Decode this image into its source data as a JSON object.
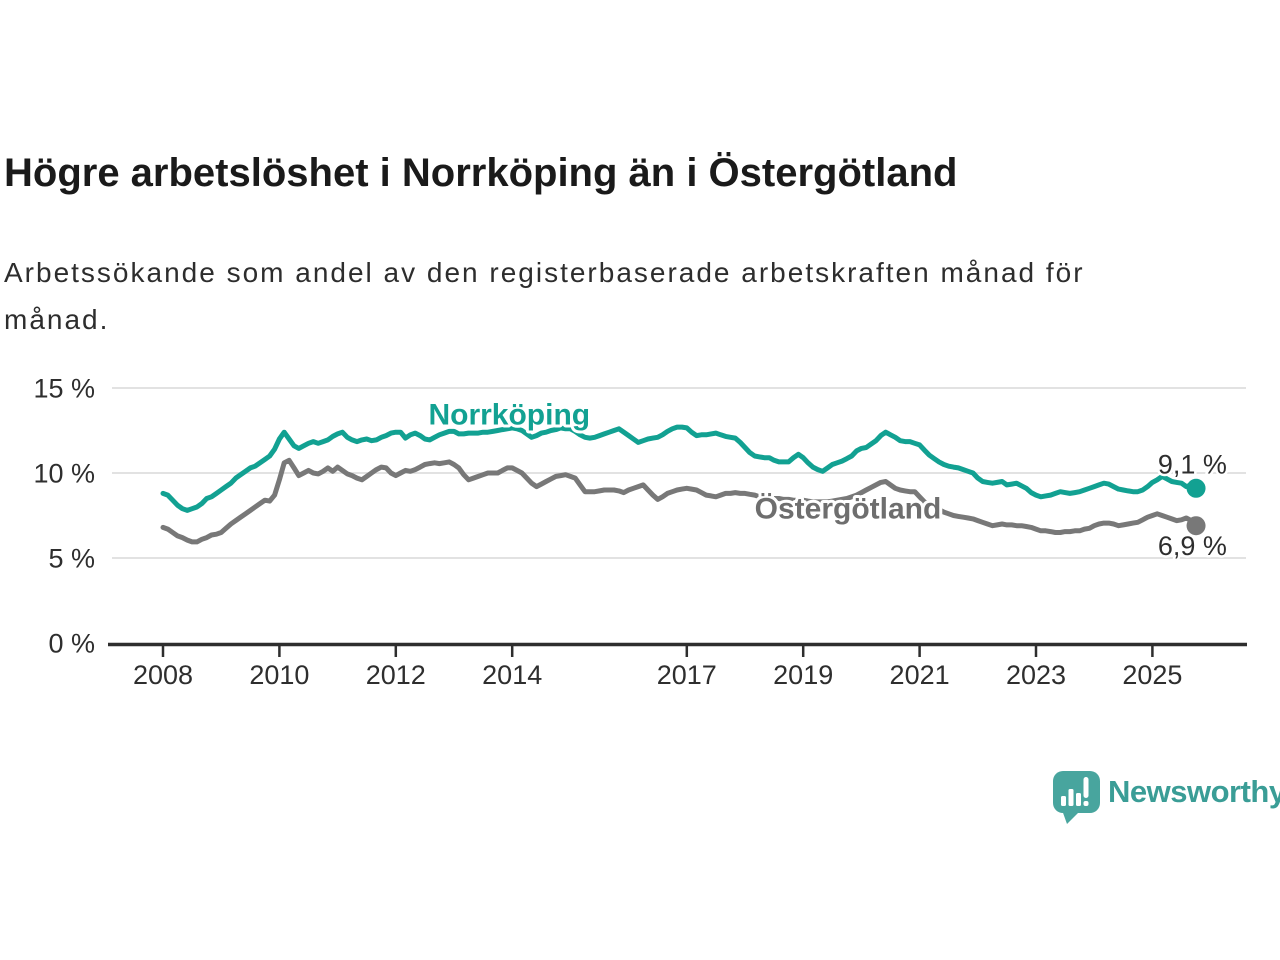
{
  "chart_data": {
    "type": "line",
    "title": "Högre arbetslöshet i Norrköping än i Östergötland",
    "subtitle": "Arbetssökande som andel av den registerbaserade arbetskraften månad för månad.",
    "grid": "horizontal",
    "grid_color": "#d9d9d9",
    "axis_color": "#2e2e2e",
    "axis_text_color": "#2e2e2e",
    "value_label_color": "#2e2e2e",
    "legend_position": "inline-labels",
    "x_axis": {
      "range": [
        2007.1,
        2026.6
      ],
      "ticks": [
        {
          "value": 2008,
          "label": "2008"
        },
        {
          "value": 2010,
          "label": "2010"
        },
        {
          "value": 2012,
          "label": "2012"
        },
        {
          "value": 2014,
          "label": "2014"
        },
        {
          "value": 2017,
          "label": "2017"
        },
        {
          "value": 2019,
          "label": "2019"
        },
        {
          "value": 2021,
          "label": "2021"
        },
        {
          "value": 2023,
          "label": "2023"
        },
        {
          "value": 2025,
          "label": "2025"
        }
      ]
    },
    "y_axis": {
      "range": [
        0,
        15.9
      ],
      "unit": "%",
      "ticks": [
        {
          "value": 15,
          "label": "15 %"
        },
        {
          "value": 10,
          "label": "10 %"
        },
        {
          "value": 5,
          "label": "5 %"
        },
        {
          "value": 0,
          "label": "0 %"
        }
      ]
    },
    "series": [
      {
        "name": "Norrköping",
        "color": "#12a192",
        "label_color": "#12a192",
        "label_anchor": {
          "x": 2013.95,
          "y": 13.45
        },
        "end_value": 9.1,
        "end_label": {
          "text": "9,1 %",
          "x": 2026.28,
          "y": 10.5
        },
        "start_year": 2008,
        "step_months": 1,
        "values": [
          8.8,
          8.7,
          8.4,
          8.1,
          7.9,
          7.8,
          7.9,
          8.0,
          8.2,
          8.5,
          8.6,
          8.8,
          9.0,
          9.2,
          9.4,
          9.7,
          9.9,
          10.1,
          10.3,
          10.4,
          10.6,
          10.8,
          11.0,
          11.4,
          12.0,
          12.4,
          12.0,
          11.6,
          11.45,
          11.6,
          11.75,
          11.85,
          11.75,
          11.85,
          11.95,
          12.15,
          12.3,
          12.4,
          12.1,
          11.95,
          11.85,
          11.95,
          12.0,
          11.9,
          11.95,
          12.1,
          12.2,
          12.35,
          12.4,
          12.4,
          12.05,
          12.25,
          12.35,
          12.2,
          12.0,
          11.95,
          12.1,
          12.25,
          12.35,
          12.45,
          12.45,
          12.3,
          12.3,
          12.35,
          12.35,
          12.35,
          12.4,
          12.4,
          12.45,
          12.5,
          12.55,
          12.6,
          12.65,
          12.6,
          12.5,
          12.3,
          12.1,
          12.2,
          12.35,
          12.4,
          12.5,
          12.55,
          12.65,
          12.6,
          12.6,
          12.45,
          12.25,
          12.1,
          12.05,
          12.1,
          12.2,
          12.3,
          12.4,
          12.5,
          12.6,
          12.4,
          12.2,
          12.0,
          11.8,
          11.9,
          12.0,
          12.05,
          12.1,
          12.25,
          12.45,
          12.6,
          12.7,
          12.7,
          12.65,
          12.4,
          12.2,
          12.25,
          12.25,
          12.3,
          12.35,
          12.25,
          12.15,
          12.1,
          12.05,
          11.8,
          11.5,
          11.2,
          11.0,
          10.95,
          10.9,
          10.9,
          10.75,
          10.65,
          10.65,
          10.65,
          10.9,
          11.1,
          10.9,
          10.6,
          10.35,
          10.2,
          10.1,
          10.3,
          10.5,
          10.6,
          10.7,
          10.85,
          11.0,
          11.3,
          11.45,
          11.5,
          11.7,
          11.9,
          12.2,
          12.4,
          12.25,
          12.1,
          11.9,
          11.85,
          11.85,
          11.75,
          11.65,
          11.35,
          11.05,
          10.85,
          10.65,
          10.5,
          10.4,
          10.35,
          10.3,
          10.2,
          10.1,
          10.0,
          9.7,
          9.5,
          9.45,
          9.4,
          9.45,
          9.5,
          9.3,
          9.35,
          9.4,
          9.25,
          9.1,
          8.85,
          8.7,
          8.6,
          8.65,
          8.7,
          8.8,
          8.9,
          8.85,
          8.8,
          8.85,
          8.9,
          9.0,
          9.1,
          9.2,
          9.3,
          9.4,
          9.35,
          9.2,
          9.05,
          9.0,
          8.95,
          8.9,
          8.9,
          9.0,
          9.2,
          9.45,
          9.6,
          9.8,
          9.65,
          9.5,
          9.45,
          9.4,
          9.2,
          9.3,
          9.1
        ]
      },
      {
        "name": "Östergötland",
        "color": "#787878",
        "label_color": "#6e6e6e",
        "label_anchor": {
          "x": 2019.77,
          "y": 7.9
        },
        "end_value": 6.9,
        "end_label": {
          "text": "6,9 %",
          "x": 2026.28,
          "y": 5.72
        },
        "start_year": 2008,
        "step_months": 1,
        "values": [
          6.8,
          6.7,
          6.5,
          6.3,
          6.2,
          6.05,
          5.95,
          5.95,
          6.1,
          6.2,
          6.35,
          6.4,
          6.5,
          6.75,
          7.0,
          7.2,
          7.4,
          7.6,
          7.8,
          8.0,
          8.2,
          8.4,
          8.35,
          8.7,
          9.6,
          10.6,
          10.75,
          10.3,
          9.85,
          10.0,
          10.15,
          10.0,
          9.95,
          10.1,
          10.3,
          10.1,
          10.35,
          10.15,
          9.95,
          9.85,
          9.7,
          9.6,
          9.8,
          10.0,
          10.2,
          10.35,
          10.3,
          10.0,
          9.85,
          10.0,
          10.15,
          10.1,
          10.2,
          10.35,
          10.5,
          10.55,
          10.6,
          10.55,
          10.6,
          10.65,
          10.5,
          10.3,
          9.9,
          9.6,
          9.7,
          9.8,
          9.9,
          10.0,
          10.0,
          10.0,
          10.15,
          10.3,
          10.3,
          10.15,
          10.0,
          9.7,
          9.4,
          9.2,
          9.35,
          9.5,
          9.65,
          9.8,
          9.85,
          9.9,
          9.8,
          9.7,
          9.3,
          8.9,
          8.9,
          8.9,
          8.95,
          9.0,
          9.0,
          9.0,
          8.95,
          8.85,
          9.0,
          9.1,
          9.2,
          9.3,
          9.0,
          8.7,
          8.45,
          8.6,
          8.8,
          8.9,
          9.0,
          9.05,
          9.1,
          9.05,
          9.0,
          8.85,
          8.7,
          8.65,
          8.6,
          8.7,
          8.8,
          8.8,
          8.85,
          8.8,
          8.8,
          8.75,
          8.7,
          8.6,
          8.55,
          8.5,
          8.5,
          8.5,
          8.45,
          8.45,
          8.4,
          8.4,
          8.4,
          8.35,
          8.3,
          8.3,
          8.3,
          8.3,
          8.35,
          8.4,
          8.45,
          8.5,
          8.6,
          8.7,
          8.85,
          9.0,
          9.15,
          9.3,
          9.45,
          9.5,
          9.3,
          9.1,
          9.0,
          8.95,
          8.9,
          8.9,
          8.6,
          8.3,
          8.15,
          8.0,
          7.85,
          7.7,
          7.6,
          7.5,
          7.45,
          7.4,
          7.35,
          7.3,
          7.2,
          7.1,
          7.0,
          6.9,
          6.95,
          7.0,
          6.95,
          6.95,
          6.9,
          6.9,
          6.85,
          6.8,
          6.7,
          6.6,
          6.6,
          6.55,
          6.5,
          6.5,
          6.55,
          6.55,
          6.6,
          6.6,
          6.7,
          6.75,
          6.9,
          7.0,
          7.05,
          7.05,
          7.0,
          6.9,
          6.95,
          7.0,
          7.05,
          7.1,
          7.25,
          7.4,
          7.5,
          7.6,
          7.5,
          7.4,
          7.3,
          7.2,
          7.25,
          7.35,
          7.2,
          6.9
        ]
      }
    ]
  },
  "brand": {
    "name": "Newsworthy",
    "text_color": "#3a9d96",
    "icon_color": "#48a59e",
    "icon_bar_color": "#ffffff",
    "icon": "newsworthy-bar-chart-speech-bubble-icon"
  }
}
